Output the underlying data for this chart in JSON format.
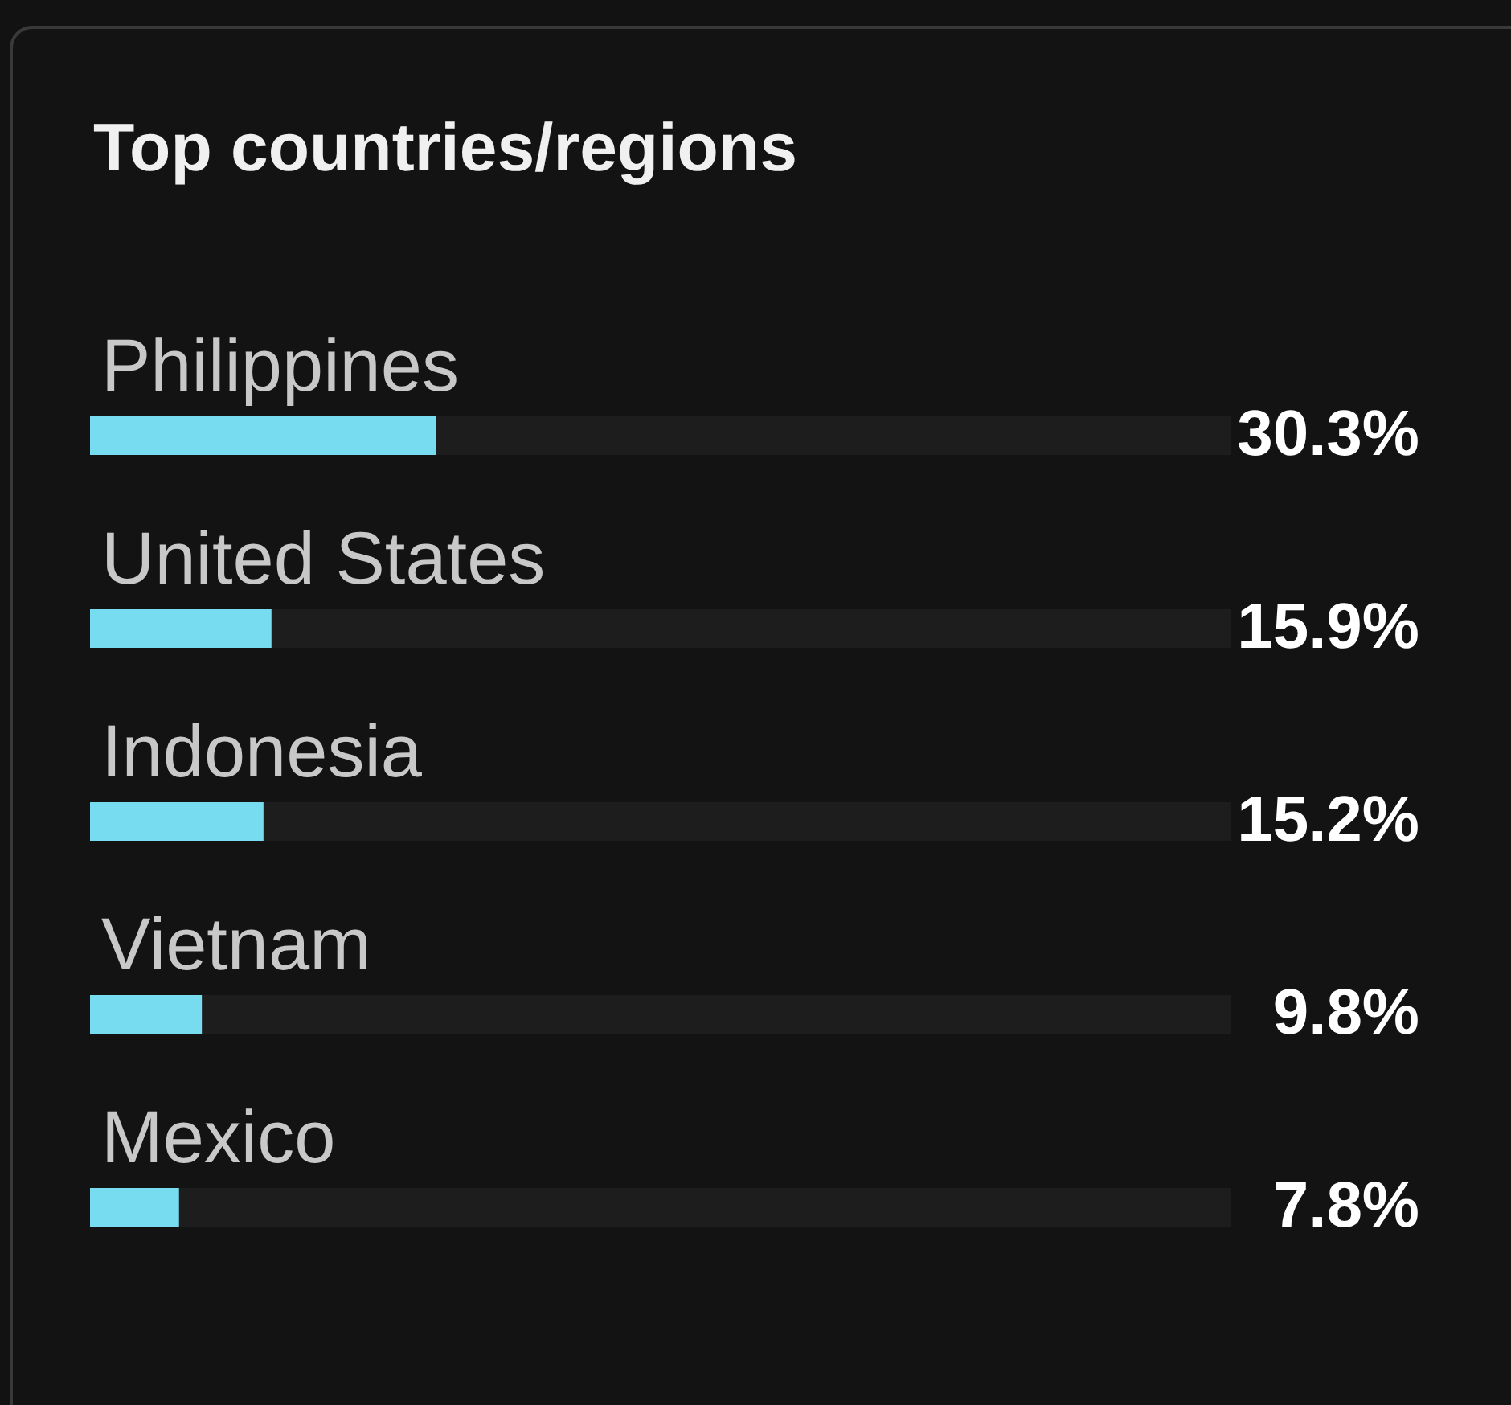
{
  "chart_data": {
    "type": "bar",
    "orientation": "horizontal",
    "title": "Top countries/regions",
    "categories": [
      "Philippines",
      "United States",
      "Indonesia",
      "Vietnam",
      "Mexico"
    ],
    "values": [
      30.3,
      15.9,
      15.2,
      9.8,
      7.8
    ],
    "value_labels": [
      "30.3%",
      "15.9%",
      "15.2%",
      "9.8%",
      "7.8%"
    ],
    "color": "#77dcef",
    "xlim": [
      0,
      100
    ],
    "tick_labels": "y"
  }
}
